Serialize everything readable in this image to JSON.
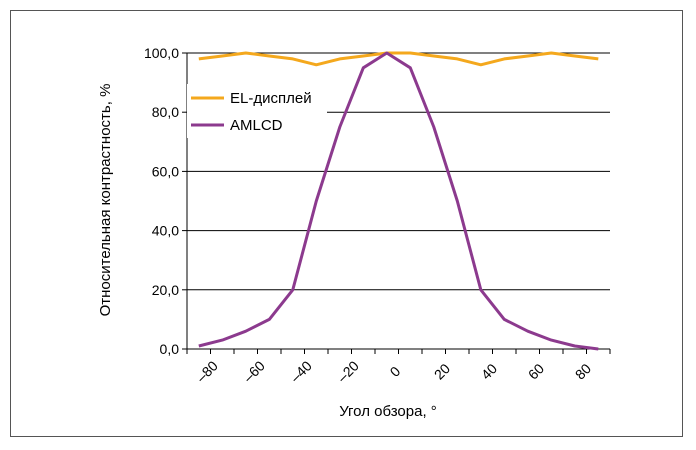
{
  "chart_data": {
    "type": "line",
    "xlabel": "Угол обзора, °",
    "ylabel": "Относительная контрастность, %",
    "x": [
      -85,
      -75,
      -65,
      -55,
      -45,
      -35,
      -25,
      -15,
      -5,
      5,
      15,
      25,
      35,
      45,
      55,
      65,
      75,
      85
    ],
    "xlim": [
      -90,
      90
    ],
    "ylim": [
      0,
      100
    ],
    "x_ticks": [
      "–80",
      "–60",
      "–40",
      "–20",
      "0",
      "20",
      "40",
      "60",
      "80"
    ],
    "x_tick_values": [
      -80,
      -60,
      -40,
      -20,
      0,
      20,
      40,
      60,
      80
    ],
    "y_ticks": [
      "0,0",
      "20,0",
      "40,0",
      "60,0",
      "80,0",
      "100,0"
    ],
    "y_tick_values": [
      0,
      20,
      40,
      60,
      80,
      100
    ],
    "grid": "horizontal",
    "legend_position": "top-left",
    "series": [
      {
        "name": "EL-дисплей",
        "color": "#F4A81D",
        "values": [
          98,
          99,
          100,
          99,
          98,
          96,
          98,
          99,
          100,
          100,
          99,
          98,
          96,
          98,
          99,
          100,
          99,
          98
        ]
      },
      {
        "name": "AMLCD",
        "color": "#8C3A8E",
        "values": [
          1,
          3,
          6,
          10,
          20,
          50,
          75,
          95,
          100,
          95,
          75,
          50,
          20,
          10,
          6,
          3,
          1,
          0
        ]
      }
    ]
  }
}
